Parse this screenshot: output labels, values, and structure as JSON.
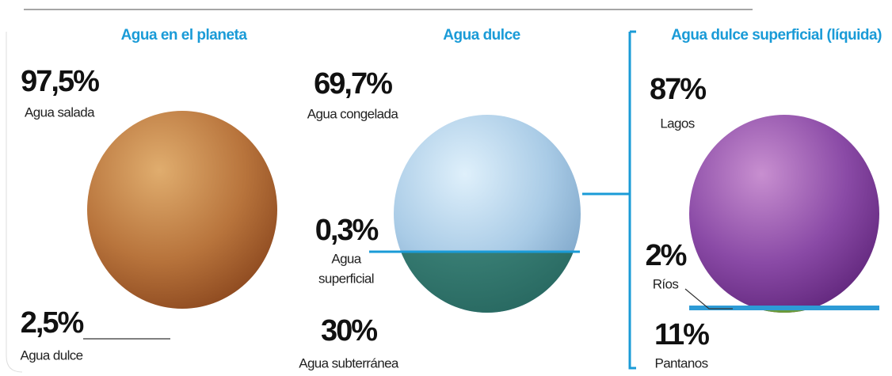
{
  "panels": [
    {
      "title": "Agua en el planeta",
      "items": [
        {
          "value": "97,5%",
          "label": [
            "Agua salada"
          ]
        },
        {
          "value": "2,5%",
          "label": [
            "Agua dulce"
          ]
        }
      ]
    },
    {
      "title": "Agua dulce",
      "items": [
        {
          "value": "69,7%",
          "label": [
            "Agua congelada"
          ]
        },
        {
          "value": "0,3%",
          "label": [
            "Agua",
            "superficial"
          ]
        },
        {
          "value": "30%",
          "label": [
            "Agua subterránea"
          ]
        }
      ]
    },
    {
      "title": "Agua dulce superficial (líquida)",
      "items": [
        {
          "value": "87%",
          "label": [
            "Lagos"
          ]
        },
        {
          "value": "2%",
          "label": [
            "Ríos"
          ]
        },
        {
          "value": "11%",
          "label": [
            "Pantanos"
          ]
        }
      ]
    }
  ]
}
